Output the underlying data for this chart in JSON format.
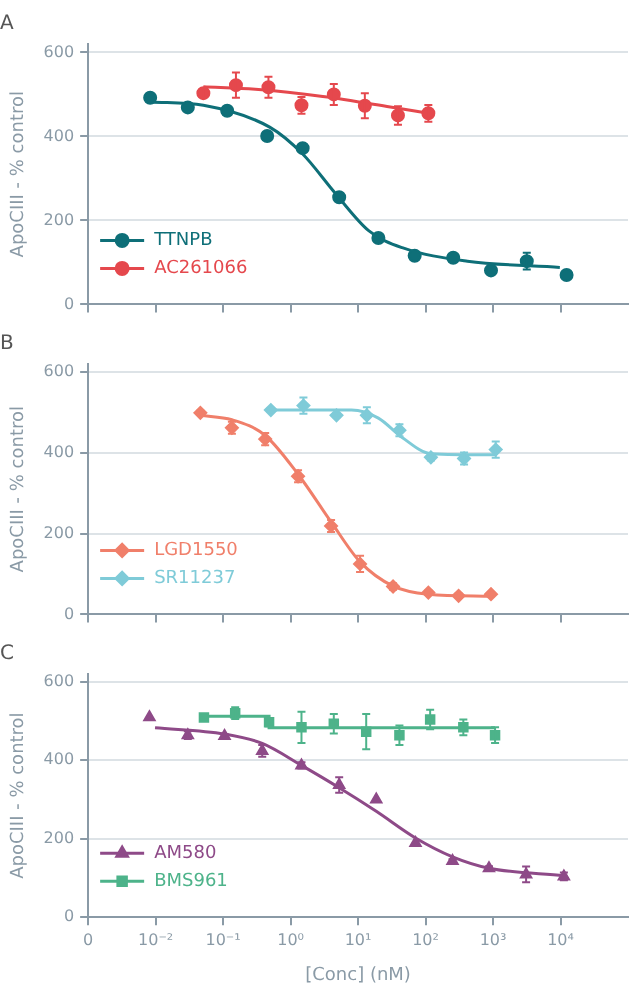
{
  "chart_data": [
    {
      "type": "scatter",
      "title": "A",
      "ylabel": "ApoCIII - % control",
      "log": "x",
      "xlim": [
        0.001,
        100000
      ],
      "xticks": [
        {
          "value": 0.001,
          "label": null
        },
        {
          "value": 0.01,
          "label": null
        },
        {
          "value": 0.1,
          "label": null
        },
        {
          "value": 1,
          "label": null
        },
        {
          "value": 10,
          "label": null
        },
        {
          "value": 100,
          "label": null
        },
        {
          "value": 1000,
          "label": null
        },
        {
          "value": 10000,
          "label": null
        }
      ],
      "ylim": [
        0,
        620
      ],
      "yticks": [
        0,
        200,
        400,
        600
      ],
      "grid": "y",
      "legend": "bottom left",
      "tick_labels": "y",
      "series": [
        {
          "name": "TTNPB",
          "color": "#0e6f78",
          "marker": "circle",
          "x": [
            0.0083,
            0.03,
            0.115,
            0.45,
            1.51,
            5.25,
            20,
            69,
            257,
            933,
            3162,
            12300
          ],
          "values": [
            492,
            469,
            461,
            401,
            372,
            255,
            158,
            116,
            111,
            81,
            103,
            70
          ],
          "errors": [
            null,
            null,
            null,
            null,
            null,
            null,
            null,
            null,
            null,
            null,
            20,
            null
          ]
        },
        {
          "type": "line",
          "color": "#0e6f78",
          "marker": "none",
          "x": [
            0.0083,
            0.051,
            0.49,
            1.51,
            4.68,
            14.5,
            45,
            417,
            9772
          ],
          "values": [
            482,
            474,
            422,
            358,
            263,
            175,
            135,
            103,
            88
          ]
        },
        {
          "name": "AC261066",
          "color": "#e5484d",
          "marker": "circle",
          "x": [
            0.051,
            0.155,
            0.47,
            1.45,
            4.37,
            12.6,
            39,
            110
          ],
          "values": [
            503,
            522,
            517,
            474,
            500,
            473,
            450,
            455
          ],
          "errors": [
            10,
            30,
            25,
            20,
            25,
            30,
            22,
            20
          ]
        },
        {
          "type": "line",
          "color": "#e5484d",
          "marker": "none",
          "x": [
            0.051,
            0.3,
            3,
            30,
            110
          ],
          "values": [
            518,
            512,
            495,
            470,
            455
          ]
        }
      ]
    },
    {
      "type": "scatter",
      "title": "B",
      "ylabel": "ApoCIII - % control",
      "log": "x",
      "xlim": [
        0.001,
        100000
      ],
      "xticks": [
        {
          "value": 0.001,
          "label": null
        },
        {
          "value": 0.01,
          "label": null
        },
        {
          "value": 0.1,
          "label": null
        },
        {
          "value": 1,
          "label": null
        },
        {
          "value": 10,
          "label": null
        },
        {
          "value": 100,
          "label": null
        },
        {
          "value": 1000,
          "label": null
        },
        {
          "value": 10000,
          "label": null
        }
      ],
      "ylim": [
        0,
        620
      ],
      "yticks": [
        0,
        200,
        400,
        600
      ],
      "grid": "y",
      "legend": "bottom left",
      "tick_labels": "y",
      "series": [
        {
          "name": "LGD1550",
          "color": "#f07f6a",
          "marker": "diamond",
          "x": [
            0.046,
            0.135,
            0.42,
            1.29,
            3.98,
            10.7,
            33,
            110,
            309,
            933
          ],
          "values": [
            499,
            462,
            434,
            342,
            219,
            125,
            69,
            54,
            46,
            50
          ],
          "errors": [
            5,
            15,
            15,
            15,
            15,
            20,
            8,
            5,
            5,
            5
          ]
        },
        {
          "type": "line",
          "color": "#f07f6a",
          "marker": "none",
          "x": [
            0.046,
            0.135,
            0.42,
            1.29,
            3.98,
            10.7,
            33,
            110,
            933
          ],
          "values": [
            493,
            482,
            443,
            347,
            229,
            130,
            70,
            50,
            45
          ]
        },
        {
          "name": "SR11237",
          "color": "#7fcbd8",
          "marker": "diamond",
          "x": [
            0.51,
            1.55,
            4.79,
            13.5,
            41,
            120,
            372,
            1096
          ],
          "values": [
            506,
            517,
            493,
            493,
            456,
            389,
            386,
            408
          ],
          "errors": [
            5,
            20,
            5,
            20,
            15,
            8,
            15,
            20
          ]
        },
        {
          "type": "line",
          "color": "#7fcbd8",
          "marker": "none",
          "x": [
            0.51,
            8,
            20,
            45,
            120,
            1096
          ],
          "values": [
            506,
            506,
            486,
            438,
            398,
            395
          ]
        }
      ]
    },
    {
      "type": "scatter",
      "title": "C",
      "xlabel": "[Conc] (nM)",
      "ylabel": "ApoCIII - % control",
      "log": "x",
      "xlim": [
        0.001,
        100000
      ],
      "xticks": [
        {
          "value": 0.001,
          "label": "0"
        },
        {
          "value": 0.01,
          "label": "10⁻²"
        },
        {
          "value": 0.1,
          "label": "10⁻¹"
        },
        {
          "value": 1,
          "label": "10⁰"
        },
        {
          "value": 10,
          "label": "10¹"
        },
        {
          "value": 100,
          "label": "10²"
        },
        {
          "value": 1000,
          "label": "10³"
        },
        {
          "value": 10000,
          "label": "10⁴"
        }
      ],
      "ylim": [
        0,
        620
      ],
      "yticks": [
        0,
        200,
        400,
        600
      ],
      "grid": "y",
      "legend": "bottom left",
      "series": [
        {
          "name": "AM580",
          "color": "#8e4a88",
          "marker": "triangle",
          "x": [
            0.0081,
            0.03,
            0.105,
            0.38,
            1.45,
            5.25,
            18.6,
            71,
            251,
            871,
            3090,
            11220
          ],
          "values": [
            510,
            464,
            462,
            424,
            387,
            337,
            300,
            189,
            143,
            125,
            109,
            104
          ],
          "errors": [
            null,
            10,
            5,
            15,
            8,
            20,
            null,
            null,
            5,
            5,
            20,
            10
          ]
        },
        {
          "type": "line",
          "color": "#8e4a88",
          "marker": "none",
          "x": [
            0.0098,
            0.105,
            0.38,
            1.45,
            5.25,
            18.6,
            71,
            251,
            871,
            11220
          ],
          "values": [
            483,
            467,
            443,
            387,
            330,
            270,
            202,
            154,
            125,
            106
          ]
        },
        {
          "name": "BMS961",
          "color": "#4db38a",
          "marker": "square",
          "x": [
            0.052,
            0.151,
            0.48,
            1.45,
            4.37,
            13.2,
            41,
            117,
            363,
            1072
          ],
          "values": [
            509,
            520,
            497,
            484,
            493,
            473,
            464,
            504,
            484,
            464
          ],
          "errors": [
            5,
            15,
            10,
            40,
            25,
            45,
            25,
            25,
            20,
            20
          ]
        },
        {
          "type": "line",
          "color": "#4db38a",
          "marker": "none",
          "x": [
            0.052,
            0.48,
            0.48,
            1072
          ],
          "values": [
            512,
            512,
            483,
            483
          ]
        }
      ]
    }
  ]
}
